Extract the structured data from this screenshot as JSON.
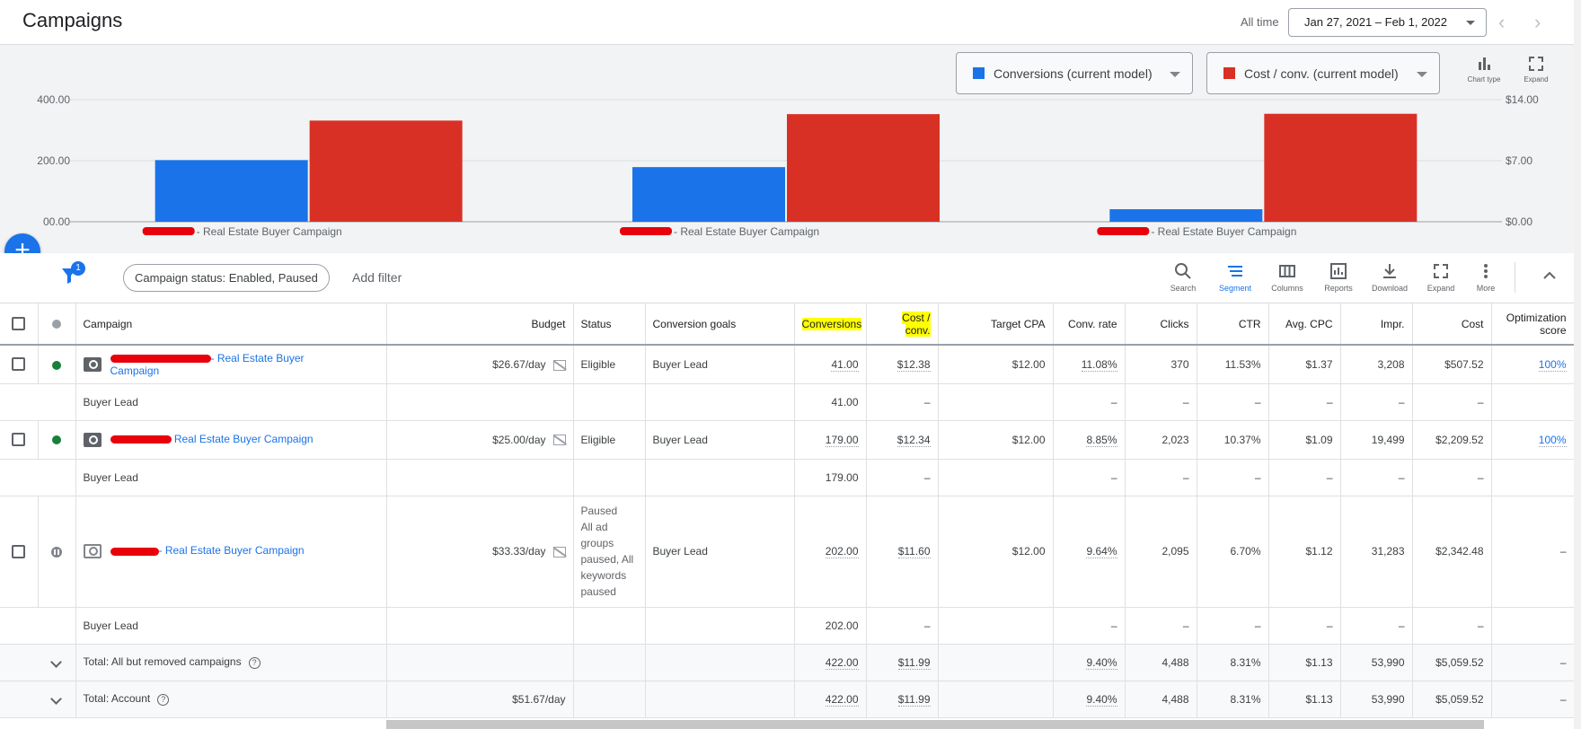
{
  "header": {
    "title": "Campaigns",
    "all_time_label": "All time",
    "date_range": "Jan 27, 2021 – Feb 1, 2022"
  },
  "chart_controls": {
    "metric1": {
      "label": "Conversions (current model)",
      "color": "#1a73e8"
    },
    "metric2": {
      "label": "Cost / conv. (current model)",
      "color": "#d93025"
    },
    "chart_type_label": "Chart type",
    "expand_label": "Expand"
  },
  "chart_data": {
    "type": "bar",
    "categories": [
      "- Real Estate Buyer Campaign",
      "- Real Estate Buyer Campaign",
      "- Real Estate Buyer Campaign"
    ],
    "series": [
      {
        "name": "Conversions (current model)",
        "axis": "left",
        "color": "#1a73e8",
        "values": [
          202,
          179,
          41
        ]
      },
      {
        "name": "Cost / conv. (current model)",
        "axis": "right",
        "color": "#d93025",
        "values": [
          11.6,
          12.34,
          12.38
        ]
      }
    ],
    "left_axis": {
      "ticks": [
        "00.00",
        "200.00",
        "400.00"
      ],
      "ylim": [
        0,
        400
      ]
    },
    "right_axis": {
      "ticks": [
        "$0.00",
        "$7.00",
        "$14.00"
      ],
      "ylim": [
        0,
        14
      ]
    },
    "grid": true
  },
  "filter_bar": {
    "filter_count": "1",
    "status_chip": "Campaign status: Enabled, Paused",
    "add_filter": "Add filter"
  },
  "toolbar": {
    "search": "Search",
    "segment": "Segment",
    "columns": "Columns",
    "reports": "Reports",
    "download": "Download",
    "expand": "Expand",
    "more": "More"
  },
  "table": {
    "headers": {
      "campaign": "Campaign",
      "budget": "Budget",
      "status": "Status",
      "conversion_goals": "Conversion goals",
      "conversions": "Conversions",
      "cost_conv_1": "Cost /",
      "cost_conv_2": "conv.",
      "target_cpa": "Target CPA",
      "conv_rate": "Conv. rate",
      "clicks": "Clicks",
      "ctr": "CTR",
      "avg_cpc": "Avg. CPC",
      "impr": "Impr.",
      "cost": "Cost",
      "opt_1": "Optimization",
      "opt_2": "score"
    },
    "rows": [
      {
        "name_1": "- Real Estate Buyer",
        "name_2": "Campaign",
        "budget": "$26.67/day",
        "status": "Eligible",
        "goals": "Buyer Lead",
        "conversions": "41.00",
        "cost_conv": "$12.38",
        "target_cpa": "$12.00",
        "conv_rate": "11.08%",
        "clicks": "370",
        "ctr": "11.53%",
        "avg_cpc": "$1.37",
        "impr": "3,208",
        "cost": "$507.52",
        "opt": "100%",
        "sub": {
          "label": "Buyer Lead",
          "conversions": "41.00",
          "cost_conv": "–",
          "dash": "–"
        }
      },
      {
        "name_1": "Real Estate Buyer Campaign",
        "budget": "$25.00/day",
        "status": "Eligible",
        "goals": "Buyer Lead",
        "conversions": "179.00",
        "cost_conv": "$12.34",
        "target_cpa": "$12.00",
        "conv_rate": "8.85%",
        "clicks": "2,023",
        "ctr": "10.37%",
        "avg_cpc": "$1.09",
        "impr": "19,499",
        "cost": "$2,209.52",
        "opt": "100%",
        "sub": {
          "label": "Buyer Lead",
          "conversions": "179.00",
          "cost_conv": "–",
          "dash": "–"
        }
      },
      {
        "name_1": "- Real Estate Buyer Campaign",
        "budget": "$33.33/day",
        "status_lines": [
          "Paused",
          "All ad",
          "groups",
          "paused, All",
          "keywords",
          "paused"
        ],
        "goals": "Buyer Lead",
        "conversions": "202.00",
        "cost_conv": "$11.60",
        "target_cpa": "$12.00",
        "conv_rate": "9.64%",
        "clicks": "2,095",
        "ctr": "6.70%",
        "avg_cpc": "$1.12",
        "impr": "31,283",
        "cost": "$2,342.48",
        "opt": "–",
        "sub": {
          "label": "Buyer Lead",
          "conversions": "202.00",
          "cost_conv": "–",
          "dash": "–"
        }
      }
    ],
    "totals": [
      {
        "label": "Total: All but removed campaigns",
        "budget": "",
        "conversions": "422.00",
        "cost_conv": "$11.99",
        "conv_rate": "9.40%",
        "clicks": "4,488",
        "ctr": "8.31%",
        "avg_cpc": "$1.13",
        "impr": "53,990",
        "cost": "$5,059.52",
        "opt": "–"
      },
      {
        "label": "Total: Account",
        "budget": "$51.67/day",
        "conversions": "422.00",
        "cost_conv": "$11.99",
        "conv_rate": "9.40%",
        "clicks": "4,488",
        "ctr": "8.31%",
        "avg_cpc": "$1.13",
        "impr": "53,990",
        "cost": "$5,059.52",
        "opt": "–"
      }
    ]
  }
}
